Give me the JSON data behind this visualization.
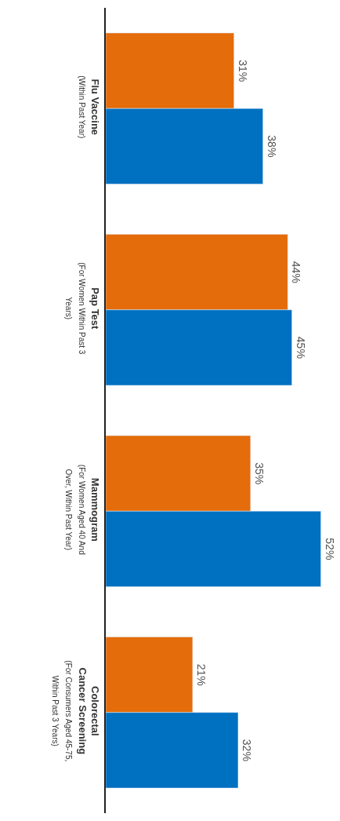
{
  "chart_data": {
    "type": "bar",
    "orientation": "horizontal",
    "categories": [
      "Flu Vaccine (Within Past Year)",
      "Pap Test (For Women Within Past 3 Years)",
      "Mammogram (For Women Aged 40 And Over, Within Past Year)",
      "Colorectal Cancer Screening (For Consumers Aged 45-75, Within Past 3 Years)"
    ],
    "series": [
      {
        "color": "#e46c0a",
        "values": [
          31,
          44,
          35,
          21
        ],
        "value_labels": [
          "31%",
          "44%",
          "35%",
          "21%"
        ]
      },
      {
        "color": "#0070c0",
        "values": [
          38,
          45,
          52,
          32
        ],
        "value_labels": [
          "38%",
          "45%",
          "52%",
          "32%"
        ]
      }
    ],
    "tick_labels": "y"
  }
}
